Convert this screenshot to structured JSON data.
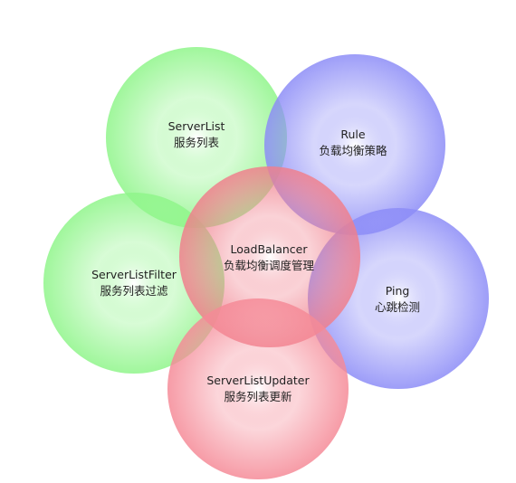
{
  "nodes": [
    {
      "id": "server-list",
      "title": "ServerList",
      "subtitle": "服务列表",
      "color": "#8ff58a"
    },
    {
      "id": "rule",
      "title": "Rule",
      "subtitle": "负载均衡策略",
      "color": "#8c8cf7"
    },
    {
      "id": "server-list-filter",
      "title": "ServerListFilter",
      "subtitle": "服务列表过滤",
      "color": "#8ff58a"
    },
    {
      "id": "ping",
      "title": "Ping",
      "subtitle": "心跳检测",
      "color": "#8c8cf7"
    },
    {
      "id": "load-balancer",
      "title": "LoadBalancer",
      "subtitle": "负载均衡调度管理",
      "color": "#f07f8c"
    },
    {
      "id": "server-list-updater",
      "title": "ServerListUpdater",
      "subtitle": "服务列表更新",
      "color": "#f58a97"
    }
  ]
}
